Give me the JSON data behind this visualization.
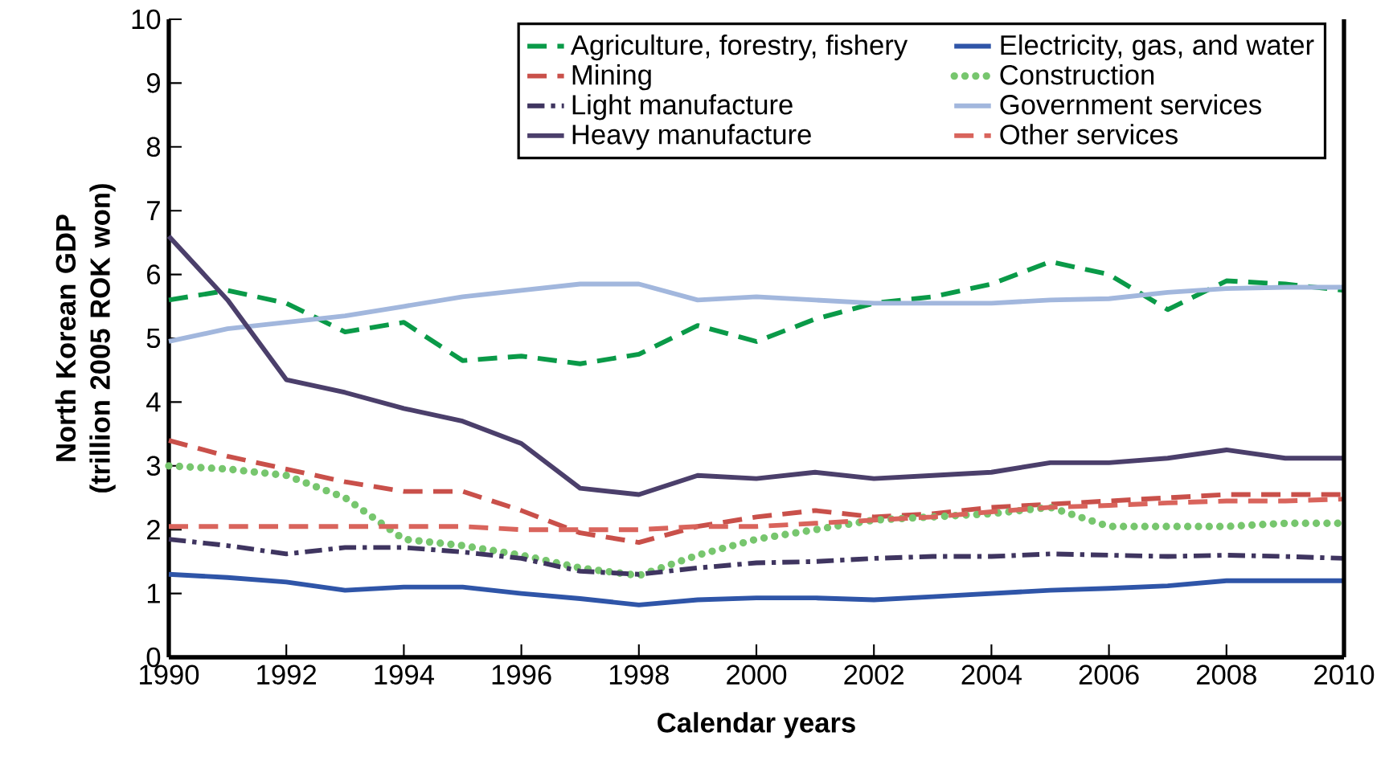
{
  "chart_data": {
    "type": "line",
    "xlabel": "Calendar years",
    "ylabel": "North Korean GDP (trillion 2005 ROK won)",
    "x": [
      1990,
      1991,
      1992,
      1993,
      1994,
      1995,
      1996,
      1997,
      1998,
      1999,
      2000,
      2001,
      2002,
      2003,
      2004,
      2005,
      2006,
      2007,
      2008,
      2009,
      2010
    ],
    "xlim": [
      1990,
      2010
    ],
    "xticks": [
      1990,
      1992,
      1994,
      1996,
      1998,
      2000,
      2002,
      2004,
      2006,
      2008,
      2010
    ],
    "ylim": [
      0,
      10
    ],
    "yticks": [
      0,
      1,
      2,
      3,
      4,
      5,
      6,
      7,
      8,
      9,
      10
    ],
    "grid": false,
    "legend": "top",
    "marker": "none",
    "series": [
      {
        "name": "Agriculture, forestry, fishery",
        "color": "#0a9a48",
        "line_style": "dashed",
        "values": [
          5.6,
          5.75,
          5.55,
          5.1,
          5.25,
          4.65,
          4.72,
          4.6,
          4.75,
          5.2,
          4.95,
          5.3,
          5.55,
          5.65,
          5.85,
          6.2,
          6.0,
          5.45,
          5.9,
          5.85,
          5.75
        ]
      },
      {
        "name": "Electricity, gas, and water",
        "color": "#2f55a8",
        "line_style": "solid",
        "values": [
          1.3,
          1.25,
          1.18,
          1.05,
          1.1,
          1.1,
          1.0,
          0.92,
          0.82,
          0.9,
          0.93,
          0.93,
          0.9,
          0.95,
          1.0,
          1.05,
          1.08,
          1.12,
          1.2,
          1.2,
          1.2
        ]
      },
      {
        "name": "Mining",
        "color": "#c9504a",
        "line_style": "dashed",
        "values": [
          3.4,
          3.15,
          2.95,
          2.75,
          2.6,
          2.6,
          2.3,
          1.95,
          1.8,
          2.05,
          2.2,
          2.3,
          2.2,
          2.25,
          2.35,
          2.4,
          2.45,
          2.5,
          2.55,
          2.55,
          2.55
        ]
      },
      {
        "name": "Construction",
        "color": "#77c66e",
        "line_style": "dotted",
        "values": [
          3.0,
          2.95,
          2.85,
          2.5,
          1.85,
          1.75,
          1.6,
          1.4,
          1.28,
          1.6,
          1.85,
          2.0,
          2.15,
          2.2,
          2.25,
          2.35,
          2.05,
          2.05,
          2.05,
          2.1,
          2.1
        ]
      },
      {
        "name": "Light manufacture",
        "color": "#3f3560",
        "line_style": "dashdot",
        "values": [
          1.85,
          1.75,
          1.62,
          1.72,
          1.72,
          1.65,
          1.55,
          1.35,
          1.3,
          1.4,
          1.48,
          1.5,
          1.55,
          1.58,
          1.58,
          1.62,
          1.6,
          1.58,
          1.6,
          1.58,
          1.55
        ]
      },
      {
        "name": "Government services",
        "color": "#a2b7dd",
        "line_style": "solid",
        "values": [
          4.95,
          5.15,
          5.25,
          5.35,
          5.5,
          5.65,
          5.75,
          5.85,
          5.85,
          5.6,
          5.65,
          5.6,
          5.55,
          5.55,
          5.55,
          5.6,
          5.62,
          5.72,
          5.78,
          5.8,
          5.8
        ]
      },
      {
        "name": "Heavy manufacture",
        "color": "#4b3f6b",
        "line_style": "solid",
        "values": [
          6.6,
          5.6,
          4.35,
          4.15,
          3.9,
          3.7,
          3.35,
          2.65,
          2.55,
          2.85,
          2.8,
          2.9,
          2.8,
          2.85,
          2.9,
          3.05,
          3.05,
          3.12,
          3.25,
          3.12,
          3.12
        ]
      },
      {
        "name": "Other services",
        "color": "#d9645c",
        "line_style": "dashed",
        "values": [
          2.05,
          2.05,
          2.05,
          2.05,
          2.05,
          2.05,
          2.0,
          2.0,
          2.0,
          2.05,
          2.05,
          2.1,
          2.15,
          2.2,
          2.28,
          2.35,
          2.38,
          2.42,
          2.45,
          2.45,
          2.48
        ]
      }
    ]
  }
}
